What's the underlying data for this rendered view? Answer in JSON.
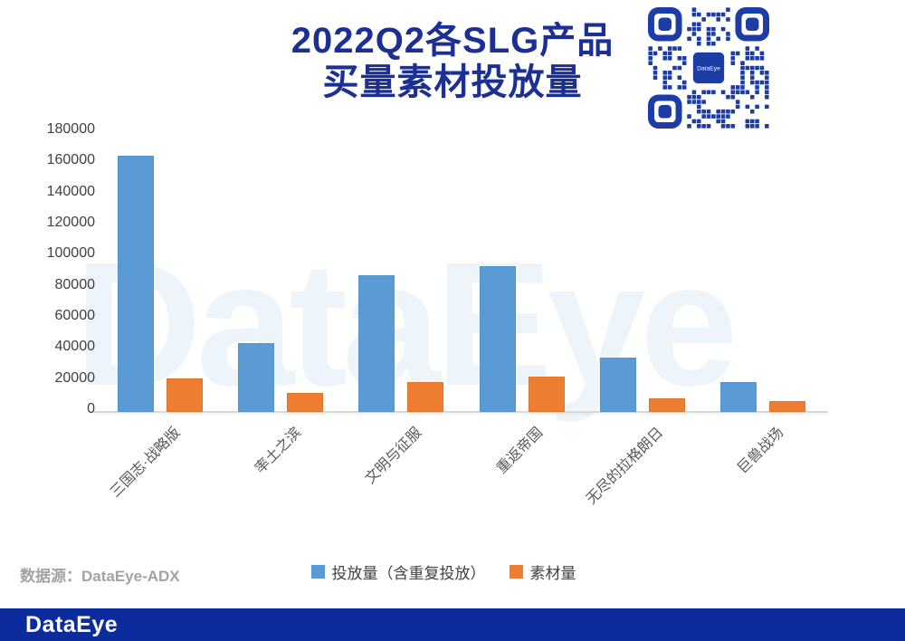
{
  "title": {
    "line1": "2022Q2各SLG产品",
    "line2": "买量素材投放量"
  },
  "qr_code": {
    "label": "DataEye"
  },
  "chart_data": {
    "type": "bar",
    "title": "2022Q2各SLG产品买量素材投放量",
    "categories": [
      "三国志·战略版",
      "率土之滨",
      "文明与征服",
      "重返帝国",
      "无尽的拉格朗日",
      "巨兽战场"
    ],
    "series": [
      {
        "name": "投放量（含重复投放）",
        "color": "#5b9bd5",
        "values": [
          165000,
          44000,
          88000,
          94000,
          35000,
          19500
        ]
      },
      {
        "name": "素材量",
        "color": "#ed7d31",
        "values": [
          21500,
          12000,
          19000,
          22500,
          8500,
          7000
        ]
      }
    ],
    "xlabel": "",
    "ylabel": "",
    "ylim": [
      0,
      180000
    ],
    "ytick_step": 20000,
    "grid": false,
    "legend_position": "bottom"
  },
  "watermark_text": "DataEye",
  "source_label": "数据源：DataEye-ADX",
  "footer": {
    "logo_text": "DataEye"
  },
  "colors": {
    "bar_blue": "#5b9bd5",
    "bar_orange": "#ed7d31",
    "title_navy": "#1c2f94",
    "footer_blue": "#0c2b9c",
    "qr_blue": "#1d3da6",
    "axis_text": "#404040",
    "category_text": "#595959",
    "source_text": "#a3a3a3",
    "watermark_blue": "#5b9bd5"
  }
}
